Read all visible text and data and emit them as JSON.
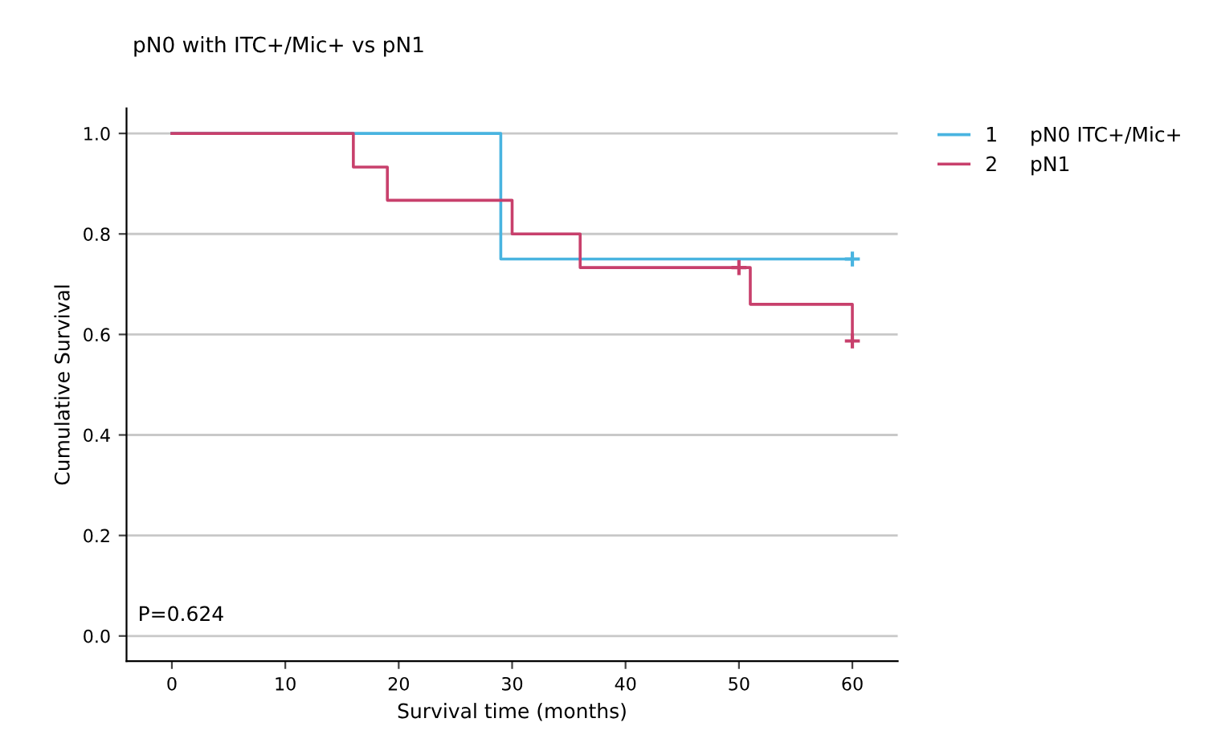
{
  "chart_data": {
    "type": "step",
    "title": "pN0 with ITC+/Mic+ vs pN1",
    "xlabel": "Survival time (months)",
    "ylabel": "Cumulative Survival",
    "series": [
      {
        "name": "1     pN0 ITC+/Mic+",
        "color": "#49b4e0",
        "x": [
          0,
          29,
          60
        ],
        "values": [
          1.0,
          0.75,
          0.75
        ]
      },
      {
        "name": "2     pN1",
        "color": "#c8406c",
        "x": [
          0,
          16,
          19,
          30,
          36,
          51,
          60
        ],
        "values": [
          1.0,
          0.933,
          0.867,
          0.8,
          0.733,
          0.66,
          0.587
        ]
      },
      {
        "type": "scatter",
        "color": "#49b4e0",
        "marker": "cross",
        "x": [
          60
        ],
        "values": [
          0.75
        ]
      },
      {
        "type": "scatter",
        "color": "#c8406c",
        "marker": "cross",
        "x": [
          50,
          60
        ],
        "values": [
          0.733,
          0.587
        ]
      }
    ],
    "xlim": [
      -4,
      64
    ],
    "xticks": [
      0,
      10,
      20,
      30,
      40,
      50,
      60
    ],
    "ylim": [
      -0.05,
      1.05
    ],
    "yticks": [
      {
        "value": 0,
        "label": "0.0"
      },
      {
        "value": 0.2,
        "label": "0.2"
      },
      {
        "value": 0.4,
        "label": "0.4"
      },
      {
        "value": 0.6,
        "label": "0.6"
      },
      {
        "value": 0.8,
        "label": "0.8"
      },
      {
        "value": 1,
        "label": "1.0"
      }
    ],
    "grid": "y",
    "legend": "top right",
    "annotations": [
      "P=0.624"
    ]
  }
}
